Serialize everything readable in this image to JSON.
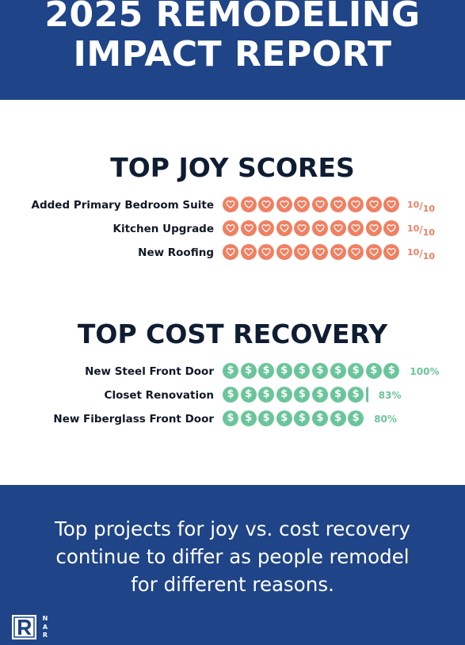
{
  "header": {
    "title_line1": "2025 REMODELING",
    "title_line2": "IMPACT REPORT"
  },
  "joy": {
    "title": "TOP JOY SCORES",
    "icon": "heart-icon",
    "rows": [
      {
        "label": "Added Primary Bedroom Suite",
        "score": 10,
        "max": 10
      },
      {
        "label": "Kitchen Upgrade",
        "score": 10,
        "max": 10
      },
      {
        "label": "New Roofing",
        "score": 10,
        "max": 10
      }
    ]
  },
  "cost": {
    "title": "TOP COST RECOVERY",
    "icon": "dollar-icon",
    "rows": [
      {
        "label": "New Steel Front Door",
        "percent": 100,
        "value_text": "100%"
      },
      {
        "label": "Closet Renovation",
        "percent": 83,
        "value_text": "83%"
      },
      {
        "label": "New Fiberglass Front Door",
        "percent": 80,
        "value_text": "80%"
      }
    ]
  },
  "footer": {
    "line1": "Top  projects for joy vs. cost recovery",
    "line2": "continue to differ as people remodel",
    "line3": "for different reasons.",
    "logo_letters": [
      "N",
      "A",
      "R"
    ]
  },
  "colors": {
    "brand_blue": "#1f4487",
    "joy_coral": "#ef8062",
    "cost_green": "#6bc59a",
    "heading_navy": "#0f1d33"
  }
}
